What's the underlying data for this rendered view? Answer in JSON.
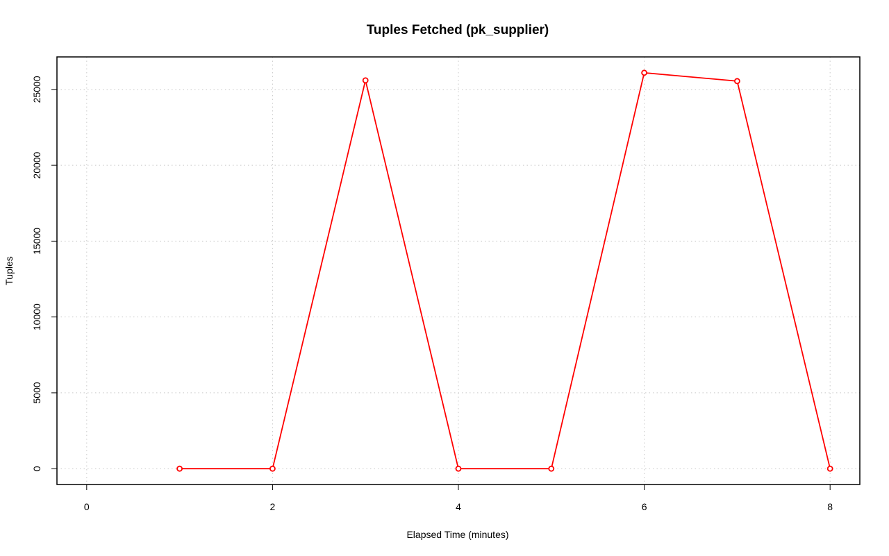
{
  "chart_data": {
    "type": "line",
    "title": "Tuples Fetched (pk_supplier)",
    "x_label": "Elapsed Time (minutes)",
    "y_label": "Tuples",
    "x": [
      1,
      2,
      3,
      4,
      5,
      6,
      7,
      8
    ],
    "series": [
      {
        "name": "pk_supplier",
        "color": "#ff0000",
        "values": [
          0,
          0,
          25600,
          0,
          0,
          26100,
          25550,
          0
        ]
      }
    ],
    "xlim": [
      -0.32,
      8.32
    ],
    "xticks": [
      0,
      2,
      4,
      6,
      8
    ],
    "ylim": [
      -1044,
      27144
    ],
    "yticks": [
      0,
      5000,
      10000,
      15000,
      20000,
      25000
    ],
    "grid": true
  }
}
